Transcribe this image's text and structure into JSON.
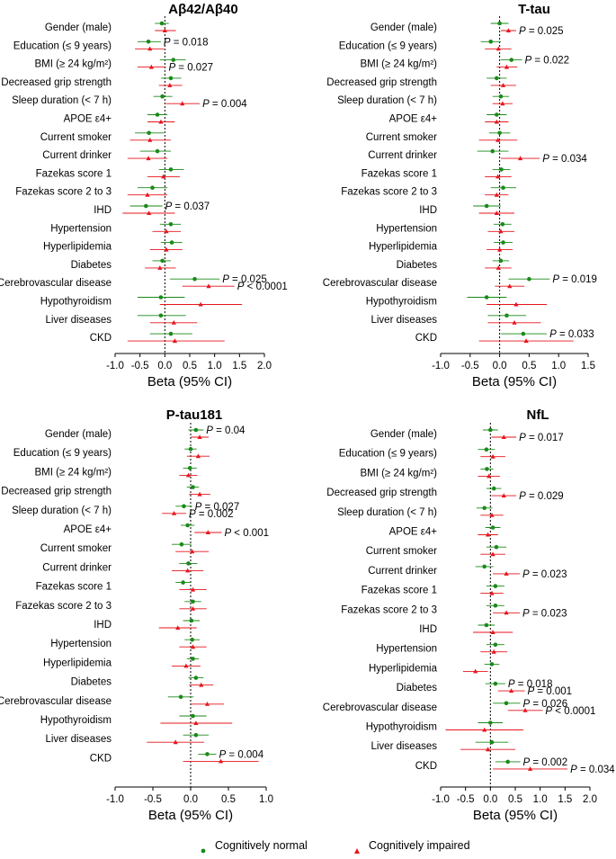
{
  "legend": {
    "normal_label": "Cognitively normal",
    "impaired_label": "Cognitively impaired"
  },
  "colors": {
    "normal": "#1a8a1a",
    "impaired": "#e8141c",
    "axis": "#000000"
  },
  "chart_data": [
    {
      "type": "forest",
      "title": "Aβ42/Aβ40",
      "xlabel": "Beta (95% CI)",
      "xlim": [
        -1.0,
        2.0
      ],
      "ticks": [
        -1.0,
        -0.5,
        0.0,
        0.5,
        1.0,
        1.5,
        2.0
      ],
      "tick_labels": [
        "-1.0",
        "-0.5",
        "0.0",
        "0.5",
        "1.0",
        "1.5",
        "2.0"
      ],
      "categories": [
        "Gender (male)",
        "Education (≤ 9 years)",
        "BMI (≥ 24 kg/m²)",
        "Decreased grip strength",
        "Sleep duration (< 7 h)",
        "APOE ε4+",
        "Current smoker",
        "Current drinker",
        "Fazekas score 1",
        "Fazekas score 2 to 3",
        "IHD",
        "Hypertension",
        "Hyperlipidemia",
        "Diabetes",
        "Cerebrovascular disease",
        "Hypothyroidism",
        "Liver diseases",
        "CKD"
      ],
      "series": [
        {
          "name": "Cognitively normal",
          "beta": [
            -0.06,
            -0.33,
            0.17,
            0.12,
            -0.05,
            -0.15,
            -0.32,
            -0.15,
            0.12,
            -0.25,
            -0.38,
            0.12,
            0.14,
            -0.05,
            0.6,
            -0.08,
            -0.08,
            0.12
          ],
          "lower": [
            -0.2,
            -0.55,
            -0.1,
            -0.08,
            -0.23,
            -0.35,
            -0.6,
            -0.5,
            -0.12,
            -0.55,
            -0.7,
            -0.1,
            -0.08,
            -0.25,
            0.1,
            -0.55,
            -0.55,
            -0.3
          ],
          "upper": [
            0.08,
            -0.08,
            0.42,
            0.33,
            0.15,
            0.05,
            -0.02,
            0.12,
            0.38,
            0.05,
            -0.05,
            0.32,
            0.35,
            0.12,
            1.1,
            0.4,
            0.42,
            0.55
          ],
          "p_labels": [
            "",
            "P = 0.018",
            "",
            "",
            "",
            "",
            "",
            "",
            "",
            "",
            "P = 0.037",
            "",
            "",
            "",
            "P = 0.025",
            "",
            "",
            ""
          ]
        },
        {
          "name": "Cognitively impaired",
          "beta": [
            0.0,
            -0.3,
            -0.27,
            0.1,
            0.35,
            -0.08,
            -0.3,
            -0.33,
            -0.03,
            -0.35,
            -0.32,
            0.03,
            0.03,
            -0.1,
            0.88,
            0.72,
            0.18,
            0.2
          ],
          "lower": [
            -0.2,
            -0.6,
            -0.55,
            -0.12,
            0.02,
            -0.35,
            -0.7,
            -0.75,
            -0.35,
            -0.75,
            -0.85,
            -0.25,
            -0.3,
            -0.4,
            0.35,
            -0.1,
            -0.3,
            -0.75
          ],
          "upper": [
            0.22,
            -0.02,
            0.02,
            0.35,
            0.7,
            0.2,
            0.12,
            0.05,
            0.3,
            0.05,
            0.2,
            0.32,
            0.35,
            0.22,
            1.4,
            1.55,
            0.65,
            1.2
          ],
          "p_labels": [
            "",
            "",
            "P = 0.027",
            "",
            "P = 0.004",
            "",
            "",
            "",
            "",
            "",
            "",
            "",
            "",
            "",
            "P < 0.0001",
            "",
            "",
            ""
          ]
        }
      ]
    },
    {
      "type": "forest",
      "title": "T-tau",
      "xlabel": "Beta (95% CI)",
      "xlim": [
        -1.0,
        1.5
      ],
      "ticks": [
        -1.0,
        -0.5,
        0.0,
        0.5,
        1.0,
        1.5
      ],
      "tick_labels": [
        "-1.0",
        "-0.5",
        "0.0",
        "0.5",
        "1.0",
        "1.5"
      ],
      "categories": [
        "Gender (male)",
        "Education (≤ 9 years)",
        "BMI (≥ 24 kg/m²)",
        "Decreased grip strength",
        "Sleep duration (< 7 h)",
        "APOE ε4+",
        "Current smoker",
        "Current drinker",
        "Fazekas score 1",
        "Fazekas score 2 to 3",
        "IHD",
        "Hypertension",
        "Hyperlipidemia",
        "Diabetes",
        "Cerebrovascular disease",
        "Hypothyroidism",
        "Liver diseases",
        "CKD"
      ],
      "series": [
        {
          "name": "Cognitively normal",
          "beta": [
            0.0,
            -0.15,
            0.2,
            -0.05,
            0.02,
            -0.05,
            0.0,
            -0.12,
            0.03,
            0.06,
            -0.22,
            0.05,
            0.06,
            0.02,
            0.5,
            -0.22,
            0.12,
            0.4
          ],
          "lower": [
            -0.15,
            -0.32,
            0.02,
            -0.22,
            -0.12,
            -0.22,
            -0.18,
            -0.38,
            -0.12,
            -0.15,
            -0.45,
            -0.1,
            -0.1,
            -0.12,
            0.15,
            -0.55,
            -0.2,
            0.02
          ],
          "upper": [
            0.15,
            0.02,
            0.38,
            0.12,
            0.16,
            0.12,
            0.18,
            0.15,
            0.18,
            0.28,
            0.02,
            0.2,
            0.22,
            0.16,
            0.85,
            0.12,
            0.45,
            0.8
          ],
          "p_labels": [
            "",
            "",
            "P = 0.022",
            "",
            "",
            "",
            "",
            "",
            "",
            "",
            "",
            "",
            "",
            "",
            "P = 0.019",
            "",
            "",
            "P = 0.033"
          ]
        },
        {
          "name": "Cognitively impaired",
          "beta": [
            0.15,
            -0.02,
            0.12,
            0.06,
            0.05,
            -0.05,
            -0.03,
            0.35,
            -0.03,
            -0.05,
            -0.05,
            0.02,
            0.0,
            -0.02,
            0.17,
            0.28,
            0.25,
            0.45
          ],
          "lower": [
            0.02,
            -0.25,
            -0.05,
            -0.15,
            -0.12,
            -0.25,
            -0.35,
            0.02,
            -0.25,
            -0.25,
            -0.35,
            -0.2,
            -0.22,
            -0.25,
            -0.08,
            -0.22,
            -0.2,
            -0.35
          ],
          "upper": [
            0.28,
            0.2,
            0.3,
            0.28,
            0.22,
            0.15,
            0.3,
            0.68,
            0.2,
            0.15,
            0.25,
            0.25,
            0.22,
            0.2,
            0.42,
            0.8,
            0.7,
            1.25
          ],
          "p_labels": [
            "P = 0.025",
            "",
            "",
            "",
            "",
            "",
            "",
            "P = 0.034",
            "",
            "",
            "",
            "",
            "",
            "",
            "",
            "",
            "",
            ""
          ]
        }
      ]
    },
    {
      "type": "forest",
      "title": "P-tau181",
      "xlabel": "Beta (95% CI)",
      "xlim": [
        -1.0,
        1.0
      ],
      "ticks": [
        -1.0,
        -0.5,
        0.0,
        0.5,
        1.0
      ],
      "tick_labels": [
        "-1.0",
        "-0.5",
        "0.0",
        "0.5",
        "1.0"
      ],
      "categories": [
        "Gender (male)",
        "Education (≤ 9 years)",
        "BMI (≥ 24 kg/m²)",
        "Decreased grip strength",
        "Sleep duration (< 7 h)",
        "APOE ε4+",
        "Current smoker",
        "Current drinker",
        "Fazekas score 1",
        "Fazekas score 2 to 3",
        "IHD",
        "Hypertension",
        "Hyperlipidemia",
        "Diabetes",
        "Cerebrovascular disease",
        "Hypothyroidism",
        "Liver diseases",
        "CKD"
      ],
      "series": [
        {
          "name": "Cognitively normal",
          "beta": [
            0.07,
            0.0,
            -0.01,
            0.03,
            -0.09,
            -0.04,
            -0.12,
            -0.03,
            -0.1,
            0.03,
            0.01,
            0.02,
            0.03,
            0.07,
            -0.13,
            0.03,
            0.07,
            0.22
          ],
          "lower": [
            -0.03,
            -0.08,
            -0.1,
            -0.05,
            -0.2,
            -0.13,
            -0.25,
            -0.15,
            -0.2,
            -0.08,
            -0.1,
            -0.08,
            -0.05,
            -0.03,
            -0.3,
            -0.15,
            -0.1,
            0.1
          ],
          "upper": [
            0.17,
            0.08,
            0.08,
            0.11,
            0.02,
            0.05,
            0.01,
            0.09,
            0.0,
            0.14,
            0.12,
            0.12,
            0.11,
            0.17,
            0.04,
            0.21,
            0.24,
            0.34
          ],
          "p_labels": [
            "P = 0.04",
            "",
            "",
            "",
            "P = 0.027",
            "",
            "",
            "",
            "",
            "",
            "",
            "",
            "",
            "",
            "",
            "",
            "",
            "P = 0.004"
          ]
        },
        {
          "name": "Cognitively impaired",
          "beta": [
            0.12,
            0.1,
            -0.03,
            0.12,
            -0.22,
            0.23,
            0.02,
            -0.04,
            0.03,
            0.03,
            -0.17,
            0.03,
            -0.06,
            0.14,
            0.22,
            0.07,
            -0.2,
            0.4
          ],
          "lower": [
            0.0,
            -0.05,
            -0.15,
            -0.02,
            -0.38,
            0.05,
            -0.2,
            -0.25,
            -0.15,
            -0.15,
            -0.42,
            -0.15,
            -0.25,
            -0.02,
            0.0,
            -0.4,
            -0.58,
            -0.1
          ],
          "upper": [
            0.24,
            0.25,
            0.09,
            0.26,
            -0.06,
            0.41,
            0.24,
            0.17,
            0.21,
            0.21,
            0.08,
            0.21,
            0.13,
            0.3,
            0.44,
            0.55,
            0.18,
            0.9
          ],
          "p_labels": [
            "",
            "",
            "",
            "",
            "P = 0.002",
            "P < 0.001",
            "",
            "",
            "",
            "",
            "",
            "",
            "",
            "",
            "",
            "",
            "",
            ""
          ]
        }
      ]
    },
    {
      "type": "forest",
      "title": "NfL",
      "xlabel": "Beta (95% CI)",
      "xlim": [
        -1.0,
        2.0
      ],
      "ticks": [
        -1.0,
        -0.5,
        0.0,
        0.5,
        1.0,
        1.5,
        2.0
      ],
      "tick_labels": [
        "-1.0",
        "-0.5",
        "0.0",
        "0.5",
        "1.0",
        "1.5",
        "2.0"
      ],
      "categories": [
        "Gender (male)",
        "Education (≤ 9 years)",
        "BMI (≥ 24 kg/m²)",
        "Decreased grip strength",
        "Sleep duration (< 7 h)",
        "APOE ε4+",
        "Current smoker",
        "Current drinker",
        "Fazekas score 1",
        "Fazekas score 2 to 3",
        "IHD",
        "Hypertension",
        "Hyperlipidemia",
        "Diabetes",
        "Cerebrovascular disease",
        "Hypothyroidism",
        "Liver diseases",
        "CKD"
      ],
      "series": [
        {
          "name": "Cognitively normal",
          "beta": [
            0.0,
            -0.08,
            -0.07,
            0.07,
            -0.12,
            0.05,
            0.12,
            -0.12,
            0.1,
            0.1,
            -0.08,
            0.1,
            0.03,
            0.1,
            0.32,
            0.0,
            0.03,
            0.35
          ],
          "lower": [
            -0.15,
            -0.25,
            -0.2,
            -0.08,
            -0.28,
            -0.1,
            -0.08,
            -0.3,
            -0.08,
            -0.08,
            -0.25,
            -0.08,
            -0.12,
            -0.1,
            0.05,
            -0.25,
            -0.3,
            0.1
          ],
          "upper": [
            0.15,
            0.09,
            0.06,
            0.22,
            0.04,
            0.2,
            0.32,
            0.06,
            0.28,
            0.28,
            0.09,
            0.28,
            0.18,
            0.3,
            0.6,
            0.25,
            0.36,
            0.6
          ],
          "p_labels": [
            "",
            "",
            "",
            "",
            "",
            "",
            "",
            "",
            "",
            "",
            "",
            "",
            "",
            "P = 0.018",
            "P = 0.026",
            "",
            "",
            "P = 0.002"
          ]
        },
        {
          "name": "Cognitively impaired",
          "beta": [
            0.27,
            0.05,
            -0.03,
            0.27,
            0.03,
            -0.05,
            0.05,
            0.32,
            0.03,
            0.32,
            0.05,
            0.07,
            -0.3,
            0.42,
            0.7,
            -0.12,
            -0.05,
            0.8
          ],
          "lower": [
            0.02,
            -0.2,
            -0.25,
            0.02,
            -0.2,
            -0.25,
            -0.2,
            0.05,
            -0.2,
            0.05,
            -0.35,
            -0.2,
            -0.55,
            0.15,
            0.35,
            -0.9,
            -0.6,
            0.05
          ],
          "upper": [
            0.52,
            0.3,
            0.19,
            0.52,
            0.26,
            0.15,
            0.3,
            0.59,
            0.26,
            0.59,
            0.45,
            0.34,
            -0.05,
            0.69,
            1.05,
            0.66,
            0.5,
            1.55
          ],
          "p_labels": [
            "P = 0.017",
            "",
            "",
            "P = 0.029",
            "",
            "",
            "",
            "P = 0.023",
            "",
            "P = 0.023",
            "",
            "",
            "",
            "P = 0.001",
            "P < 0.0001",
            "",
            "",
            "P = 0.034"
          ]
        }
      ]
    }
  ]
}
